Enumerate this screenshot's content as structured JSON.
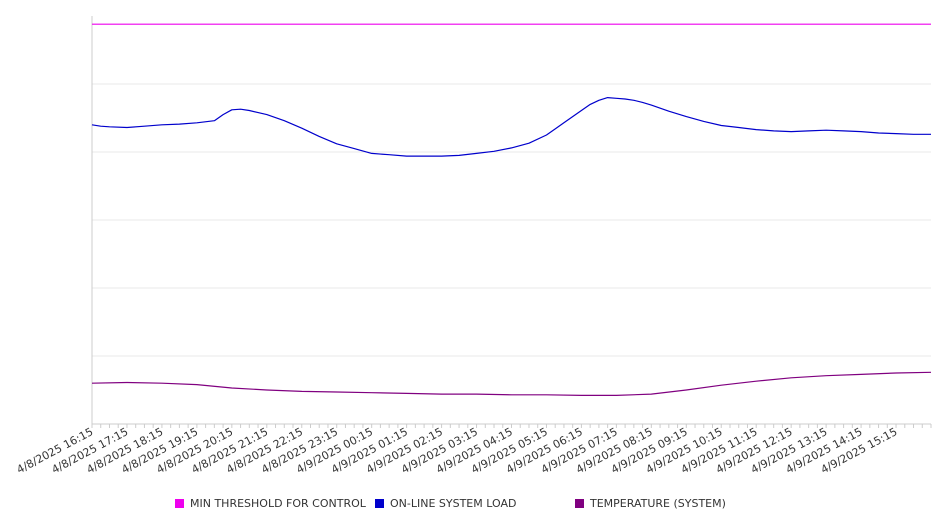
{
  "chart_data": {
    "type": "line",
    "title": "",
    "xlabel": "",
    "ylabel": "",
    "grid": true,
    "legend_position": "bottom",
    "x_tick_labels": [
      "4/8/2025 16:15",
      "4/8/2025 17:15",
      "4/8/2025 18:15",
      "4/8/2025 19:15",
      "4/8/2025 20:15",
      "4/8/2025 21:15",
      "4/8/2025 22:15",
      "4/8/2025 23:15",
      "4/9/2025 00:15",
      "4/9/2025 01:15",
      "4/9/2025 02:15",
      "4/9/2025 03:15",
      "4/9/2025 04:15",
      "4/9/2025 05:15",
      "4/9/2025 06:15",
      "4/9/2025 07:15",
      "4/9/2025 08:15",
      "4/9/2025 09:15",
      "4/9/2025 10:15",
      "4/9/2025 11:15",
      "4/9/2025 12:15",
      "4/9/2025 13:15",
      "4/9/2025 14:15",
      "4/9/2025 15:15"
    ],
    "x_range_hours": [
      0,
      24
    ],
    "y_range": [
      0,
      6
    ],
    "series": [
      {
        "name": "MIN THRESHOLD FOR CONTROL",
        "color": "#ee00ee",
        "x": [
          0,
          24
        ],
        "y": [
          5.88,
          5.88
        ]
      },
      {
        "name": "ON-LINE SYSTEM LOAD",
        "color": "#0000cc",
        "x": [
          0,
          0.25,
          0.5,
          1,
          1.5,
          2,
          2.5,
          3,
          3.5,
          3.75,
          4,
          4.25,
          4.5,
          4.75,
          5,
          5.5,
          6,
          6.5,
          7,
          7.5,
          8,
          8.5,
          9,
          9.5,
          10,
          10.5,
          11,
          11.5,
          12,
          12.5,
          13,
          13.5,
          14,
          14.25,
          14.5,
          14.75,
          15,
          15.25,
          15.5,
          15.75,
          16,
          16.5,
          17,
          17.5,
          18,
          18.5,
          19,
          19.5,
          20,
          20.5,
          21,
          21.5,
          22,
          22.5,
          23,
          23.5,
          24
        ],
        "y": [
          4.4,
          4.38,
          4.37,
          4.36,
          4.38,
          4.4,
          4.41,
          4.43,
          4.46,
          4.55,
          4.62,
          4.63,
          4.61,
          4.58,
          4.55,
          4.46,
          4.35,
          4.23,
          4.12,
          4.05,
          3.98,
          3.96,
          3.94,
          3.94,
          3.94,
          3.95,
          3.98,
          4.01,
          4.06,
          4.13,
          4.25,
          4.43,
          4.61,
          4.7,
          4.76,
          4.8,
          4.79,
          4.78,
          4.76,
          4.73,
          4.69,
          4.6,
          4.52,
          4.45,
          4.39,
          4.36,
          4.33,
          4.31,
          4.3,
          4.31,
          4.32,
          4.31,
          4.3,
          4.28,
          4.27,
          4.26,
          4.26
        ]
      },
      {
        "name": "TEMPERATURE (SYSTEM)",
        "color": "#800080",
        "x": [
          0,
          1,
          2,
          3,
          4,
          5,
          6,
          7,
          8,
          9,
          10,
          11,
          12,
          13,
          14,
          15,
          16,
          17,
          18,
          19,
          20,
          21,
          22,
          23,
          24
        ],
        "y": [
          0.6,
          0.61,
          0.6,
          0.58,
          0.53,
          0.5,
          0.48,
          0.47,
          0.46,
          0.45,
          0.44,
          0.44,
          0.43,
          0.43,
          0.42,
          0.42,
          0.44,
          0.5,
          0.57,
          0.63,
          0.68,
          0.71,
          0.73,
          0.75,
          0.76
        ]
      }
    ]
  }
}
